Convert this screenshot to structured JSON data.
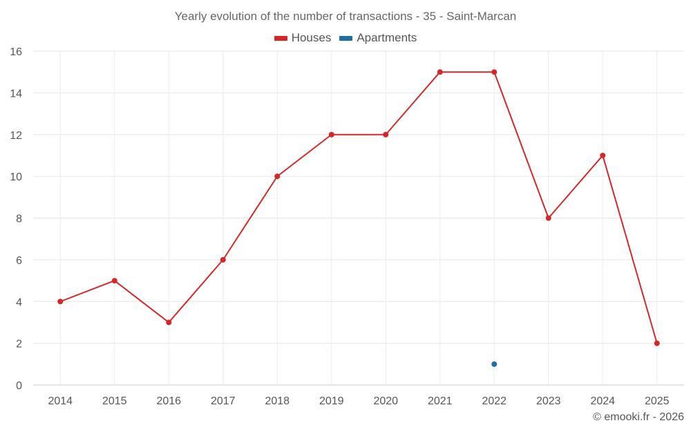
{
  "chart_data": {
    "type": "line",
    "title": "Yearly evolution of the number of transactions - 35 - Saint-Marcan",
    "xlabel": "",
    "ylabel": "",
    "categories": [
      "2014",
      "2015",
      "2016",
      "2017",
      "2018",
      "2019",
      "2020",
      "2021",
      "2022",
      "2023",
      "2024",
      "2025"
    ],
    "ylim": [
      0,
      16
    ],
    "yticks": [
      0,
      2,
      4,
      6,
      8,
      10,
      12,
      14,
      16
    ],
    "grid": true,
    "legend_position": "top-center",
    "series": [
      {
        "name": "Houses",
        "color": "#d62728",
        "values": [
          4,
          5,
          3,
          6,
          10,
          12,
          12,
          15,
          15,
          8,
          11,
          2
        ]
      },
      {
        "name": "Apartments",
        "color": "#1f6fa3",
        "values": [
          null,
          null,
          null,
          null,
          null,
          null,
          null,
          null,
          1,
          null,
          null,
          null
        ]
      }
    ]
  },
  "credit": "© emooki.fr - 2026"
}
